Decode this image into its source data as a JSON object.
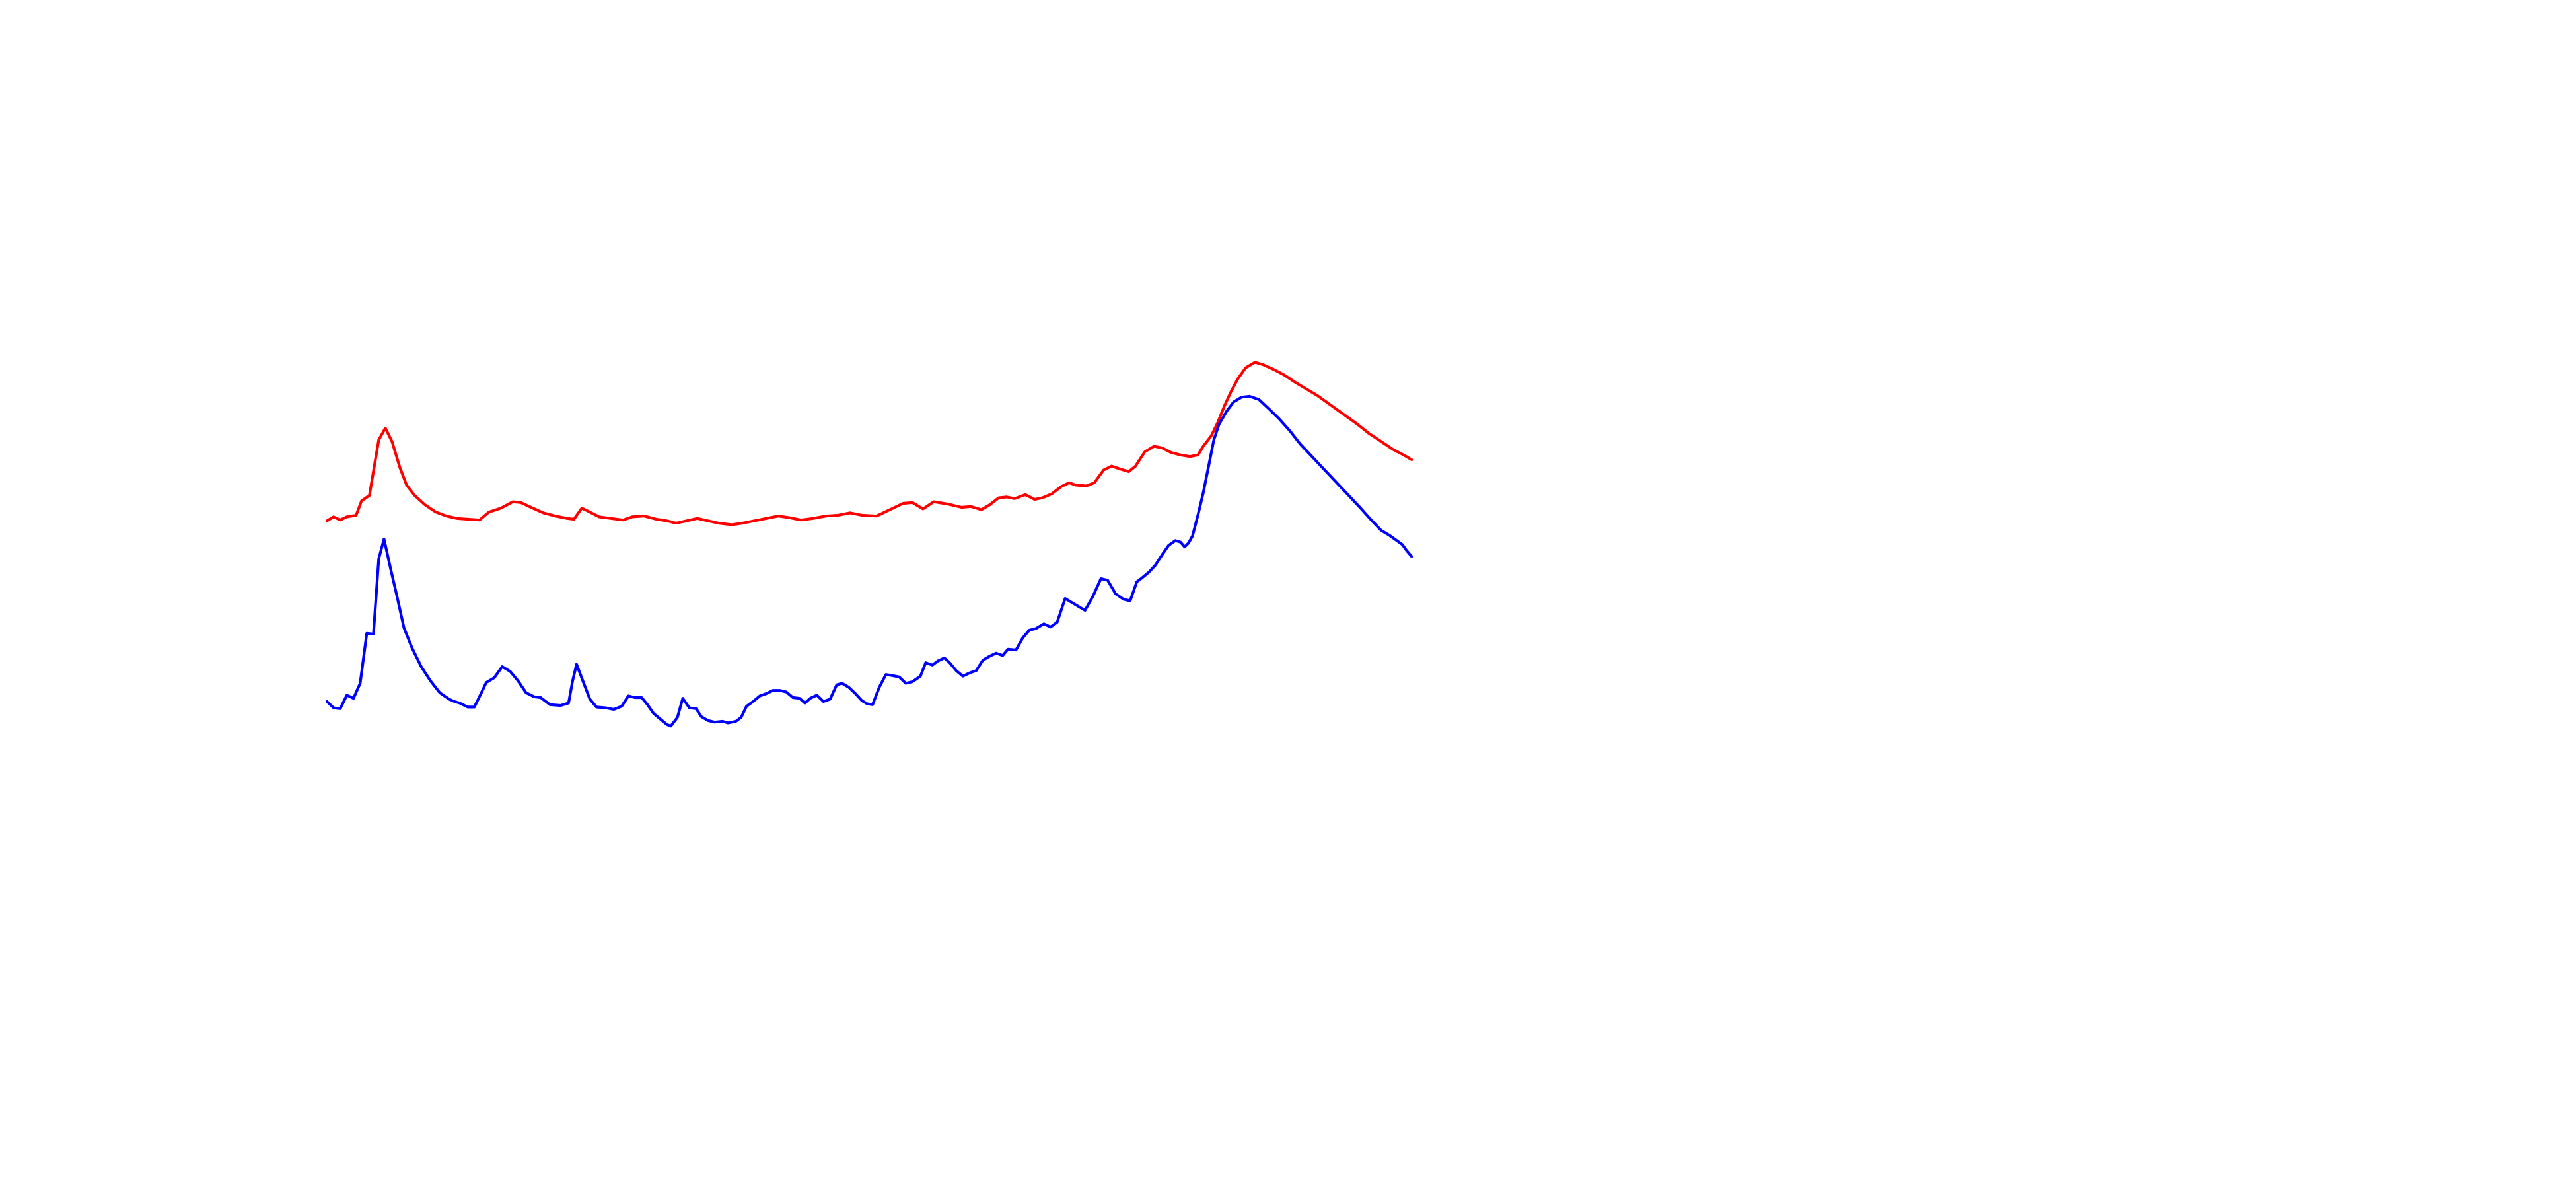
{
  "chart_data": {
    "type": "line",
    "title": "",
    "xlabel": "",
    "ylabel": "",
    "grid": false,
    "legend": "none",
    "xlim": [
      0,
      100
    ],
    "ylim": [
      0,
      100
    ],
    "series": [
      {
        "color": "#ff0000",
        "points": [
          [
            0.0,
            54.3
          ],
          [
            0.5,
            54.8
          ],
          [
            1.0,
            54.4
          ],
          [
            1.5,
            54.8
          ],
          [
            2.2,
            55.0
          ],
          [
            2.6,
            56.8
          ],
          [
            3.2,
            57.5
          ],
          [
            3.9,
            64.5
          ],
          [
            4.4,
            66.0
          ],
          [
            4.9,
            64.3
          ],
          [
            5.5,
            61.0
          ],
          [
            6.0,
            58.8
          ],
          [
            6.6,
            57.5
          ],
          [
            7.4,
            56.3
          ],
          [
            8.2,
            55.4
          ],
          [
            9.0,
            54.9
          ],
          [
            9.8,
            54.6
          ],
          [
            10.6,
            54.5
          ],
          [
            11.5,
            54.4
          ],
          [
            12.2,
            55.4
          ],
          [
            13.1,
            55.9
          ],
          [
            14.0,
            56.7
          ],
          [
            14.6,
            56.6
          ],
          [
            15.5,
            55.9
          ],
          [
            16.3,
            55.3
          ],
          [
            17.2,
            54.9
          ],
          [
            18.1,
            54.6
          ],
          [
            18.6,
            54.5
          ],
          [
            19.2,
            55.9
          ],
          [
            19.8,
            55.4
          ],
          [
            20.5,
            54.8
          ],
          [
            21.4,
            54.6
          ],
          [
            22.3,
            54.4
          ],
          [
            23.0,
            54.8
          ],
          [
            23.9,
            54.9
          ],
          [
            24.8,
            54.5
          ],
          [
            25.6,
            54.3
          ],
          [
            26.3,
            54.0
          ],
          [
            27.1,
            54.3
          ],
          [
            27.9,
            54.6
          ],
          [
            28.7,
            54.3
          ],
          [
            29.5,
            54.0
          ],
          [
            30.5,
            53.8
          ],
          [
            31.3,
            54.0
          ],
          [
            32.2,
            54.3
          ],
          [
            33.1,
            54.6
          ],
          [
            34.0,
            54.9
          ],
          [
            34.8,
            54.7
          ],
          [
            35.7,
            54.4
          ],
          [
            36.6,
            54.6
          ],
          [
            37.6,
            54.9
          ],
          [
            38.5,
            55.0
          ],
          [
            39.4,
            55.3
          ],
          [
            40.3,
            55.0
          ],
          [
            41.4,
            54.9
          ],
          [
            42.4,
            55.7
          ],
          [
            43.4,
            56.5
          ],
          [
            44.1,
            56.6
          ],
          [
            44.9,
            55.8
          ],
          [
            45.7,
            56.7
          ],
          [
            46.8,
            56.4
          ],
          [
            47.8,
            56.0
          ],
          [
            48.5,
            56.1
          ],
          [
            49.3,
            55.7
          ],
          [
            49.9,
            56.3
          ],
          [
            50.6,
            57.2
          ],
          [
            51.2,
            57.3
          ],
          [
            51.8,
            57.1
          ],
          [
            52.6,
            57.6
          ],
          [
            53.3,
            57.0
          ],
          [
            53.9,
            57.2
          ],
          [
            54.6,
            57.7
          ],
          [
            55.3,
            58.6
          ],
          [
            55.9,
            59.1
          ],
          [
            56.4,
            58.8
          ],
          [
            57.2,
            58.7
          ],
          [
            57.8,
            59.1
          ],
          [
            58.5,
            60.7
          ],
          [
            59.1,
            61.2
          ],
          [
            59.8,
            60.8
          ],
          [
            60.4,
            60.5
          ],
          [
            60.9,
            61.2
          ],
          [
            61.6,
            63.0
          ],
          [
            62.3,
            63.7
          ],
          [
            62.9,
            63.5
          ],
          [
            63.6,
            62.9
          ],
          [
            64.3,
            62.6
          ],
          [
            65.0,
            62.4
          ],
          [
            65.6,
            62.6
          ],
          [
            66.0,
            63.7
          ],
          [
            66.6,
            65.0
          ],
          [
            67.1,
            66.7
          ],
          [
            67.6,
            68.8
          ],
          [
            68.1,
            70.6
          ],
          [
            68.6,
            72.2
          ],
          [
            69.2,
            73.6
          ],
          [
            69.9,
            74.3
          ],
          [
            70.5,
            74.0
          ],
          [
            71.3,
            73.4
          ],
          [
            72.1,
            72.7
          ],
          [
            72.9,
            71.8
          ],
          [
            73.7,
            71.0
          ],
          [
            74.6,
            70.1
          ],
          [
            75.6,
            68.9
          ],
          [
            76.6,
            67.7
          ],
          [
            77.6,
            66.5
          ],
          [
            78.5,
            65.3
          ],
          [
            79.5,
            64.2
          ],
          [
            80.3,
            63.3
          ],
          [
            81.1,
            62.6
          ],
          [
            81.7,
            62.0
          ]
        ]
      },
      {
        "color": "#0000ff",
        "points": [
          [
            0.0,
            31.5
          ],
          [
            0.5,
            30.7
          ],
          [
            1.0,
            30.6
          ],
          [
            1.5,
            32.3
          ],
          [
            2.0,
            31.9
          ],
          [
            2.5,
            33.8
          ],
          [
            3.0,
            40.1
          ],
          [
            3.5,
            40.0
          ],
          [
            3.9,
            49.5
          ],
          [
            4.3,
            52.0
          ],
          [
            4.8,
            48.2
          ],
          [
            5.3,
            44.6
          ],
          [
            5.8,
            40.8
          ],
          [
            6.4,
            38.3
          ],
          [
            7.1,
            35.9
          ],
          [
            7.8,
            34.1
          ],
          [
            8.5,
            32.6
          ],
          [
            9.2,
            31.8
          ],
          [
            9.6,
            31.5
          ],
          [
            10.0,
            31.3
          ],
          [
            10.6,
            30.8
          ],
          [
            11.1,
            30.8
          ],
          [
            11.6,
            32.5
          ],
          [
            12.0,
            33.9
          ],
          [
            12.6,
            34.5
          ],
          [
            13.2,
            35.9
          ],
          [
            13.8,
            35.3
          ],
          [
            14.4,
            34.1
          ],
          [
            15.0,
            32.6
          ],
          [
            15.6,
            32.1
          ],
          [
            16.1,
            32.0
          ],
          [
            16.8,
            31.1
          ],
          [
            17.6,
            31.0
          ],
          [
            18.2,
            31.3
          ],
          [
            18.5,
            34.1
          ],
          [
            18.8,
            36.2
          ],
          [
            19.3,
            34.0
          ],
          [
            19.8,
            31.8
          ],
          [
            20.3,
            30.8
          ],
          [
            21.0,
            30.7
          ],
          [
            21.6,
            30.5
          ],
          [
            22.2,
            30.9
          ],
          [
            22.7,
            32.2
          ],
          [
            23.2,
            32.0
          ],
          [
            23.7,
            32.0
          ],
          [
            24.1,
            31.2
          ],
          [
            24.6,
            30.0
          ],
          [
            25.1,
            29.3
          ],
          [
            25.6,
            28.6
          ],
          [
            25.9,
            28.4
          ],
          [
            26.4,
            29.5
          ],
          [
            26.8,
            31.9
          ],
          [
            27.3,
            30.7
          ],
          [
            27.8,
            30.6
          ],
          [
            28.2,
            29.6
          ],
          [
            28.7,
            29.1
          ],
          [
            29.2,
            28.9
          ],
          [
            29.8,
            29.0
          ],
          [
            30.2,
            28.8
          ],
          [
            30.8,
            29.0
          ],
          [
            31.2,
            29.5
          ],
          [
            31.6,
            30.9
          ],
          [
            32.1,
            31.5
          ],
          [
            32.6,
            32.2
          ],
          [
            33.1,
            32.5
          ],
          [
            33.6,
            32.9
          ],
          [
            34.1,
            32.9
          ],
          [
            34.6,
            32.7
          ],
          [
            35.1,
            32.0
          ],
          [
            35.6,
            31.9
          ],
          [
            36.0,
            31.3
          ],
          [
            36.4,
            31.9
          ],
          [
            36.9,
            32.3
          ],
          [
            37.4,
            31.5
          ],
          [
            37.9,
            31.8
          ],
          [
            38.4,
            33.6
          ],
          [
            38.8,
            33.8
          ],
          [
            39.3,
            33.3
          ],
          [
            39.8,
            32.5
          ],
          [
            40.3,
            31.6
          ],
          [
            40.7,
            31.2
          ],
          [
            41.1,
            31.1
          ],
          [
            41.6,
            33.3
          ],
          [
            42.1,
            34.9
          ],
          [
            42.5,
            34.8
          ],
          [
            43.1,
            34.6
          ],
          [
            43.6,
            33.8
          ],
          [
            44.1,
            34.0
          ],
          [
            44.7,
            34.7
          ],
          [
            45.1,
            36.4
          ],
          [
            45.6,
            36.1
          ],
          [
            46.0,
            36.6
          ],
          [
            46.5,
            37.0
          ],
          [
            46.9,
            36.4
          ],
          [
            47.4,
            35.4
          ],
          [
            47.9,
            34.7
          ],
          [
            48.4,
            35.1
          ],
          [
            48.9,
            35.4
          ],
          [
            49.4,
            36.7
          ],
          [
            49.9,
            37.2
          ],
          [
            50.4,
            37.6
          ],
          [
            50.9,
            37.3
          ],
          [
            51.3,
            38.1
          ],
          [
            51.9,
            38.0
          ],
          [
            52.4,
            39.5
          ],
          [
            52.9,
            40.5
          ],
          [
            53.4,
            40.7
          ],
          [
            54.0,
            41.3
          ],
          [
            54.5,
            40.9
          ],
          [
            55.0,
            41.5
          ],
          [
            55.6,
            44.5
          ],
          [
            56.1,
            44.0
          ],
          [
            56.6,
            43.5
          ],
          [
            57.1,
            43.0
          ],
          [
            57.7,
            44.8
          ],
          [
            58.3,
            47.0
          ],
          [
            58.8,
            46.8
          ],
          [
            59.4,
            45.1
          ],
          [
            60.0,
            44.4
          ],
          [
            60.5,
            44.2
          ],
          [
            61.0,
            46.6
          ],
          [
            61.4,
            47.1
          ],
          [
            61.9,
            47.8
          ],
          [
            62.4,
            48.7
          ],
          [
            62.9,
            50.0
          ],
          [
            63.4,
            51.2
          ],
          [
            63.9,
            51.8
          ],
          [
            64.3,
            51.6
          ],
          [
            64.6,
            51.0
          ],
          [
            64.9,
            51.5
          ],
          [
            65.2,
            52.4
          ],
          [
            65.6,
            55.0
          ],
          [
            66.0,
            57.8
          ],
          [
            66.4,
            61.1
          ],
          [
            66.8,
            64.5
          ],
          [
            67.2,
            66.5
          ],
          [
            67.8,
            68.2
          ],
          [
            68.3,
            69.3
          ],
          [
            68.9,
            69.9
          ],
          [
            69.5,
            70.0
          ],
          [
            70.2,
            69.6
          ],
          [
            70.9,
            68.5
          ],
          [
            71.7,
            67.2
          ],
          [
            72.5,
            65.7
          ],
          [
            73.3,
            64.0
          ],
          [
            74.2,
            62.4
          ],
          [
            75.1,
            60.8
          ],
          [
            76.0,
            59.2
          ],
          [
            76.9,
            57.6
          ],
          [
            77.8,
            56.0
          ],
          [
            78.6,
            54.5
          ],
          [
            79.4,
            53.1
          ],
          [
            80.0,
            52.5
          ],
          [
            80.5,
            51.9
          ],
          [
            81.0,
            51.3
          ],
          [
            81.3,
            50.6
          ],
          [
            81.7,
            49.8
          ]
        ]
      }
    ]
  }
}
